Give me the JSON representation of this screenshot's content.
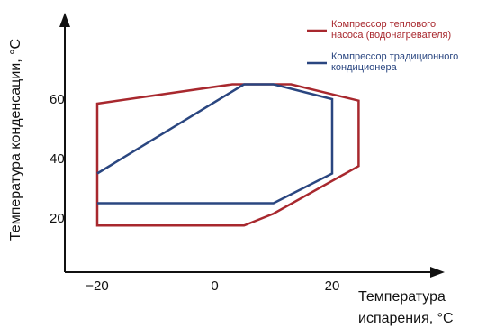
{
  "chart_data": {
    "type": "line",
    "xlabel_lines": [
      "Температура",
      "испарения, °C"
    ],
    "ylabel": "Температура конденсации, °C",
    "x_ticks": [
      {
        "value": -20,
        "label": "−20"
      },
      {
        "value": 0,
        "label": "0"
      },
      {
        "value": 20,
        "label": "20"
      }
    ],
    "y_ticks": [
      {
        "value": 20,
        "label": "20"
      },
      {
        "value": 40,
        "label": "40"
      },
      {
        "value": 60,
        "label": "60"
      }
    ],
    "series": [
      {
        "name_lines": [
          "Компрессор теплового",
          "насоса (водонагревателя)"
        ],
        "color": "#a8282e",
        "closed": true,
        "points": [
          [
            -20,
            17.5
          ],
          [
            -20,
            58.5
          ],
          [
            3,
            65
          ],
          [
            13,
            65
          ],
          [
            24.5,
            59.5
          ],
          [
            24.5,
            37.5
          ],
          [
            10,
            21.5
          ],
          [
            5,
            17.5
          ]
        ]
      },
      {
        "name_lines": [
          "Компрессор традиционного",
          "кондиционера"
        ],
        "color": "#2a4680",
        "closed": false,
        "points": [
          [
            -20,
            35
          ],
          [
            5,
            65
          ],
          [
            10,
            65
          ],
          [
            20,
            60
          ],
          [
            20,
            35
          ],
          [
            10,
            25
          ],
          [
            -20,
            25
          ]
        ]
      }
    ],
    "axis_color": "#111111"
  }
}
